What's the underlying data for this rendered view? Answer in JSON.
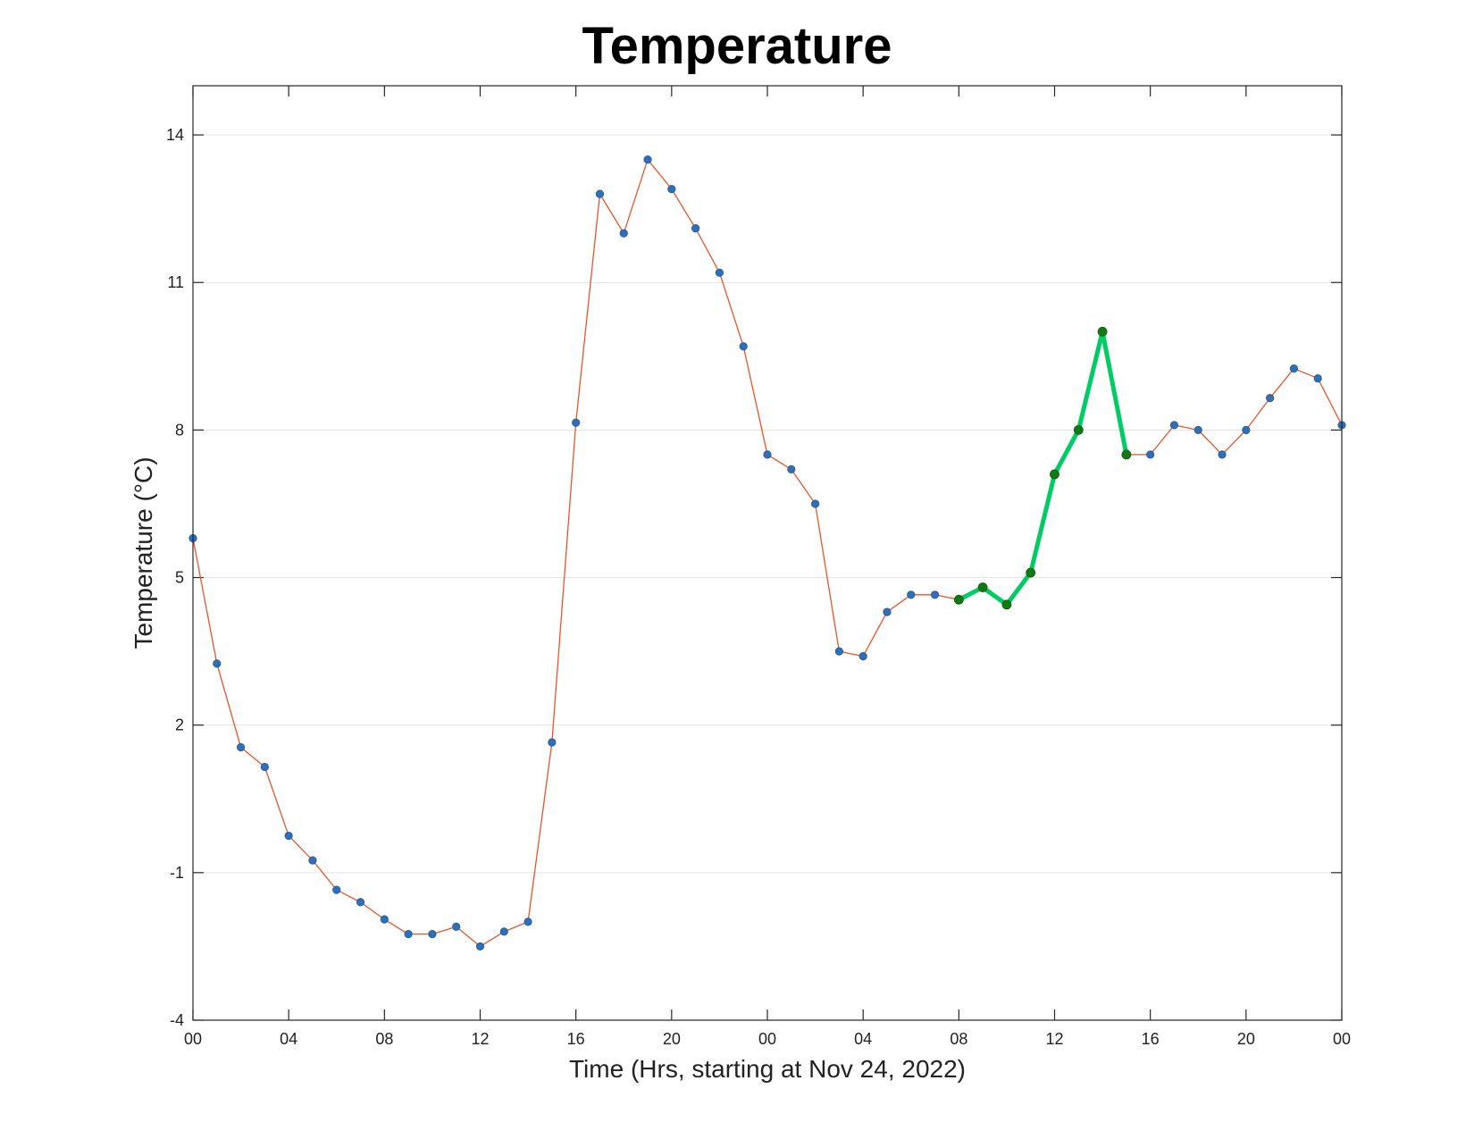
{
  "chart_data": {
    "type": "line",
    "title": "Temperature",
    "xlabel": "Time (Hrs, starting at Nov 24, 2022)",
    "ylabel": "Temperature (°C)",
    "x_ticks": [
      "00",
      "04",
      "08",
      "12",
      "16",
      "20",
      "00",
      "04",
      "08",
      "12",
      "16",
      "20",
      "00"
    ],
    "x_tick_hours": [
      0,
      4,
      8,
      12,
      16,
      20,
      24,
      28,
      32,
      36,
      40,
      44,
      48
    ],
    "xlim": [
      0,
      48
    ],
    "ylim": [
      -4,
      15
    ],
    "y_ticks": [
      -4,
      -1,
      2,
      5,
      8,
      11,
      14
    ],
    "grid": "horizontal",
    "series": [
      {
        "x": [
          0,
          1,
          2,
          3,
          4,
          5,
          6,
          7,
          8,
          9,
          10,
          11,
          12,
          13,
          14,
          15,
          16,
          17,
          18,
          19,
          20,
          21,
          22,
          23,
          24,
          25,
          26,
          27,
          28,
          29,
          30,
          31,
          32,
          33,
          34,
          35,
          36,
          37,
          38,
          39,
          40,
          41,
          42,
          43,
          44,
          45,
          46,
          47,
          48
        ],
        "values": [
          5.8,
          3.25,
          1.55,
          1.15,
          -0.25,
          -0.75,
          -1.35,
          -1.6,
          -1.95,
          -2.25,
          -2.25,
          -2.1,
          -2.5,
          -2.2,
          -2.0,
          1.65,
          8.15,
          12.8,
          12.0,
          13.5,
          12.9,
          12.1,
          11.2,
          9.7,
          7.5,
          7.2,
          6.5,
          3.5,
          3.4,
          4.3,
          4.65,
          4.65,
          4.55,
          4.8,
          4.45,
          5.1,
          7.1,
          8.0,
          10.0,
          7.5,
          7.5,
          8.1,
          8.0,
          7.5,
          8.0,
          8.65,
          9.25,
          9.05,
          8.1
        ],
        "color": "#e8552a",
        "marker_color": "#2e6fb7"
      }
    ],
    "highlight": {
      "x_range": [
        32,
        39
      ],
      "color": "#00cc66",
      "marker_color": "#127a12"
    }
  }
}
